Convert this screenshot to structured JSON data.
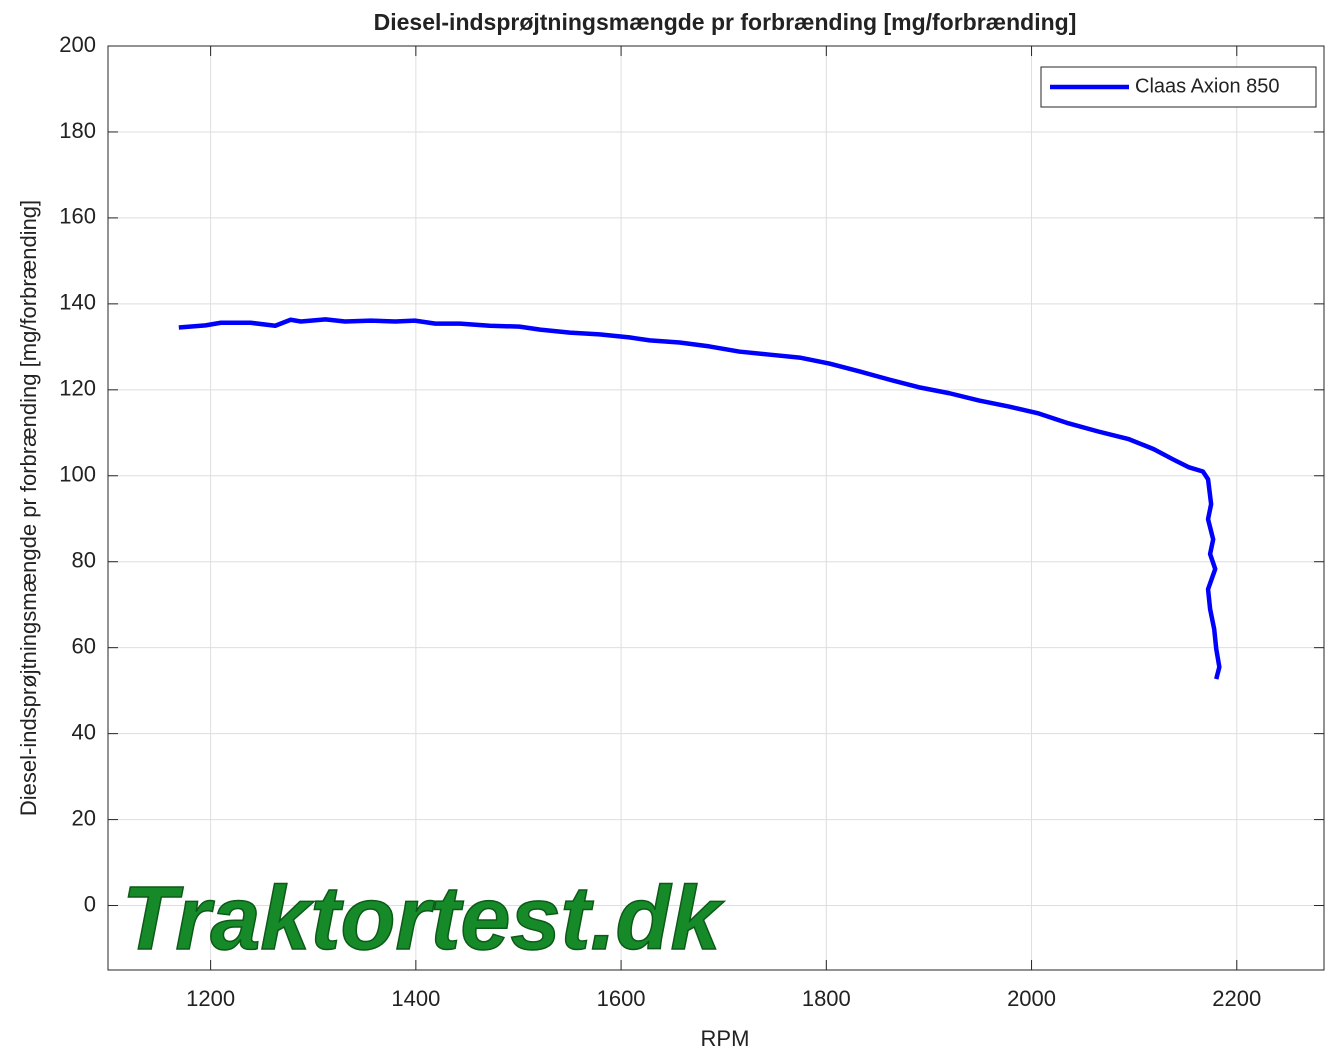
{
  "chart_data": {
    "type": "line",
    "title": "Diesel-indsprøjtningsmængde pr forbrænding [mg/forbrænding]",
    "xlabel": "RPM",
    "ylabel": "Diesel-indsprøjtningsmængde pr forbrænding [mg/forbrænding]",
    "watermark": "Traktortest.dk",
    "xlim": [
      1100,
      2285
    ],
    "ylim": [
      -15,
      200
    ],
    "xticks": [
      1200,
      1400,
      1600,
      1800,
      2000,
      2200
    ],
    "yticks": [
      0,
      20,
      40,
      60,
      80,
      100,
      120,
      140,
      160,
      180,
      200
    ],
    "grid": true,
    "legend": "upper right",
    "series": [
      {
        "name": "Claas Axion 850",
        "color": "#0000ff",
        "x": [
          1169,
          1195,
          1210,
          1239,
          1263,
          1278,
          1288,
          1312,
          1331,
          1356,
          1380,
          1399,
          1419,
          1443,
          1472,
          1501,
          1521,
          1550,
          1579,
          1608,
          1628,
          1657,
          1686,
          1715,
          1744,
          1774,
          1803,
          1832,
          1861,
          1890,
          1920,
          1949,
          1978,
          2007,
          2036,
          2065,
          2095,
          2119,
          2138,
          2153,
          2167,
          2172,
          2175,
          2172,
          2177,
          2174,
          2179,
          2172,
          2174,
          2178,
          2180,
          2183,
          2180
        ],
        "values": [
          134.5,
          135,
          135.6,
          135.6,
          134.9,
          136.3,
          135.9,
          136.4,
          135.9,
          136.1,
          135.9,
          136.1,
          135.4,
          135.4,
          134.9,
          134.7,
          134,
          133.3,
          132.9,
          132.2,
          131.5,
          131,
          130.1,
          128.9,
          128.2,
          127.5,
          126.1,
          124.3,
          122.4,
          120.6,
          119.2,
          117.5,
          116.1,
          114.5,
          112.2,
          110.3,
          108.5,
          106.2,
          103.8,
          102,
          101,
          99.2,
          93.4,
          89.9,
          85.2,
          81.8,
          78.3,
          73.6,
          69,
          64.3,
          59.7,
          55.5,
          52.7
        ]
      }
    ]
  }
}
